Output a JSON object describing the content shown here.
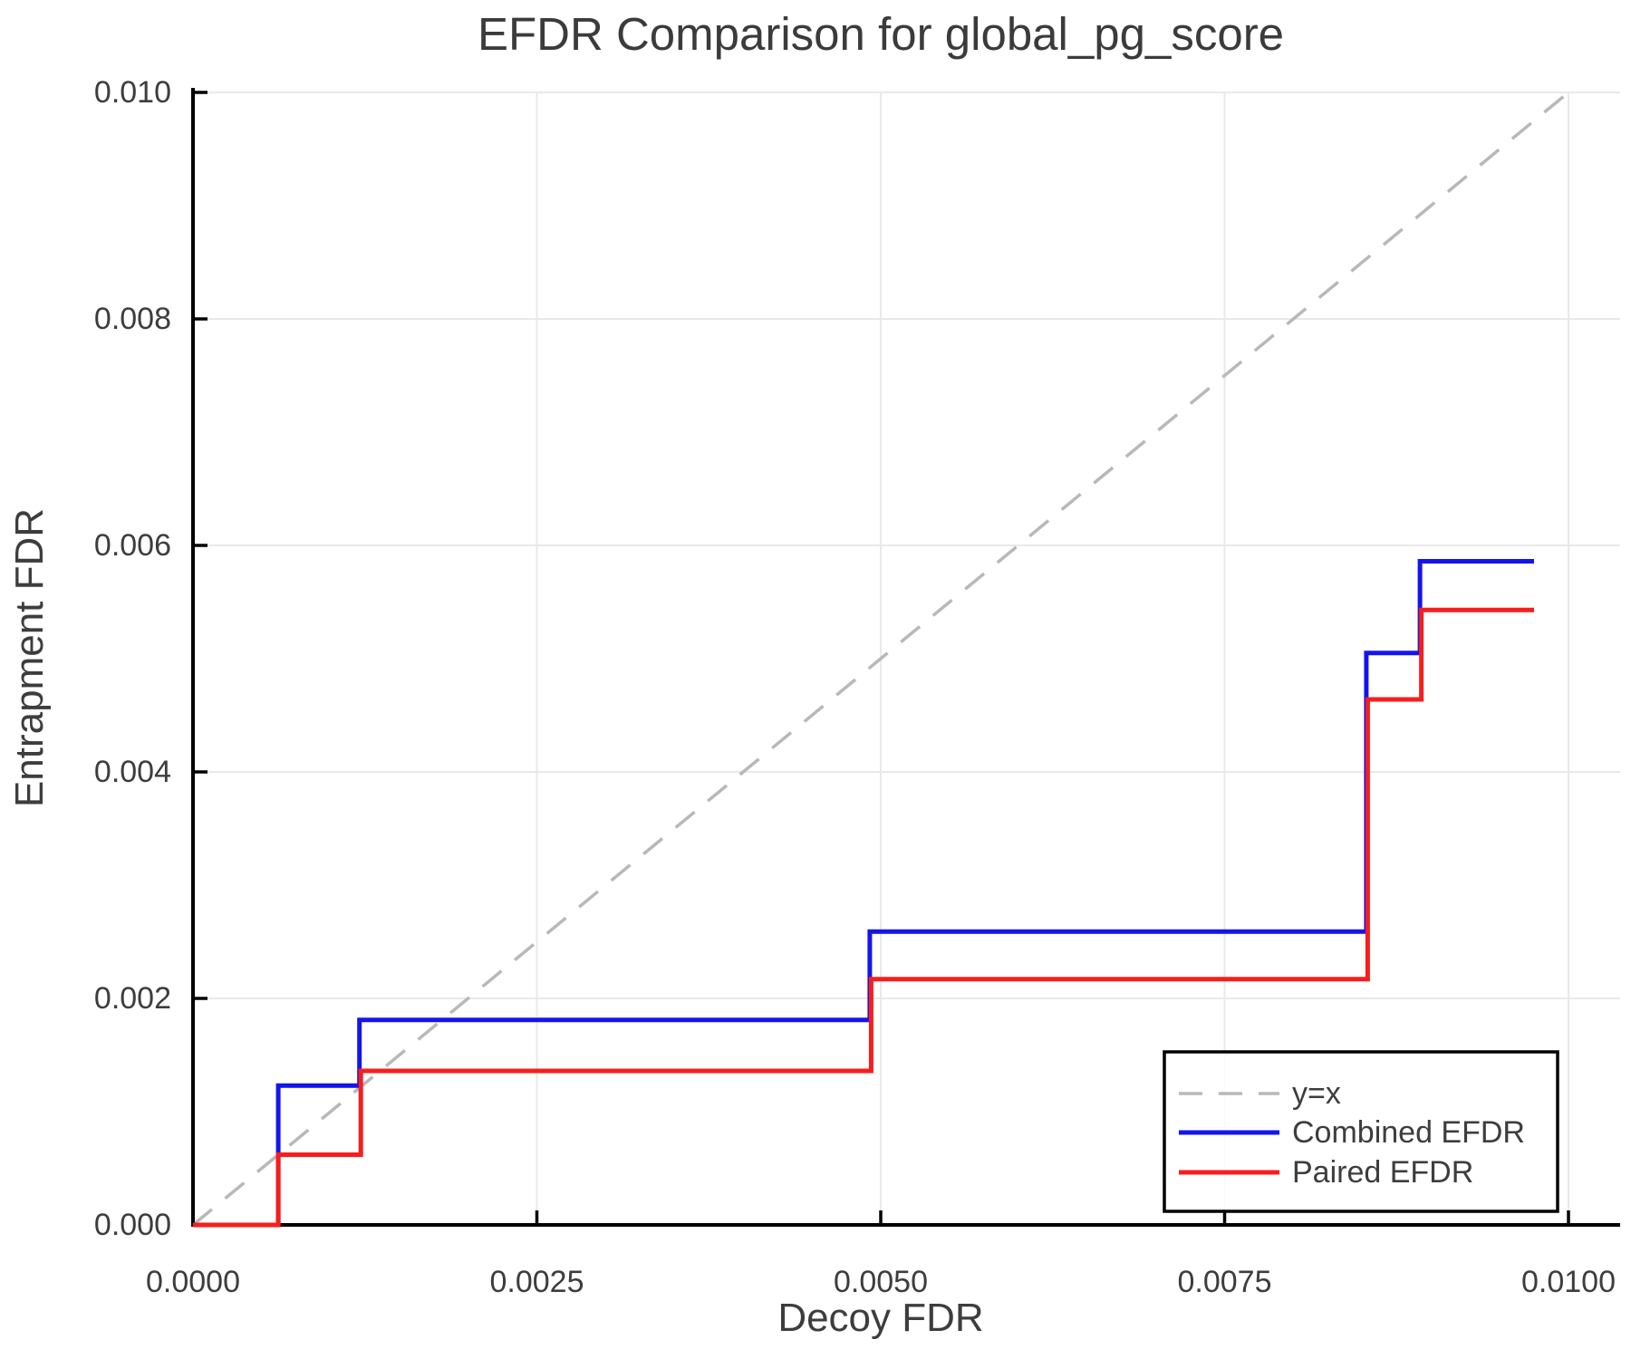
{
  "chart_data": {
    "type": "line",
    "subtype": "step-post",
    "title": "EFDR Comparison for global_pg_score",
    "xlabel": "Decoy FDR",
    "ylabel": "Entrapment FDR",
    "xlim": [
      0.0,
      0.0104
    ],
    "ylim": [
      0.0,
      0.0101
    ],
    "grid": true,
    "background": "#ffffff",
    "text_color": "#3d3d3d",
    "grid_color": "#e9e9e9",
    "spine_color": "#000000",
    "x_ticks": {
      "values": [
        0.0,
        0.0025,
        0.005,
        0.0075,
        0.01
      ],
      "labels": [
        "0.0000",
        "0.0025",
        "0.0050",
        "0.0075",
        "0.0100"
      ]
    },
    "y_ticks": {
      "values": [
        0.0,
        0.002,
        0.004,
        0.006,
        0.008,
        0.01
      ],
      "labels": [
        "0.000",
        "0.002",
        "0.004",
        "0.006",
        "0.008",
        "0.010"
      ]
    },
    "reference_line": {
      "label": "y=x",
      "from": [
        0.0,
        0.0
      ],
      "to": [
        0.01,
        0.01
      ],
      "style": "dashed",
      "color": "#b8b8b8"
    },
    "series": [
      {
        "name": "Combined EFDR",
        "color": "#1414ee",
        "step": "post",
        "x": [
          0.0,
          0.00062,
          0.00121,
          0.00492,
          0.00853,
          0.00892,
          0.00975
        ],
        "y": [
          0.0,
          0.00123,
          0.00181,
          0.00259,
          0.00505,
          0.00586,
          0.00586
        ]
      },
      {
        "name": "Paired EFDR",
        "color": "#f81d1d",
        "step": "post",
        "x": [
          0.0,
          0.00062,
          0.00122,
          0.00493,
          0.00854,
          0.00893,
          0.00975
        ],
        "y": [
          0.0,
          0.00062,
          0.00136,
          0.00217,
          0.00464,
          0.00543,
          0.00543
        ]
      }
    ],
    "legend": {
      "position": "lower right",
      "entries": [
        {
          "label": "y=x",
          "color": "#b8b8b8",
          "dashed": true
        },
        {
          "label": "Combined EFDR",
          "color": "#1414ee",
          "dashed": false
        },
        {
          "label": "Paired EFDR",
          "color": "#f81d1d",
          "dashed": false
        }
      ]
    }
  }
}
